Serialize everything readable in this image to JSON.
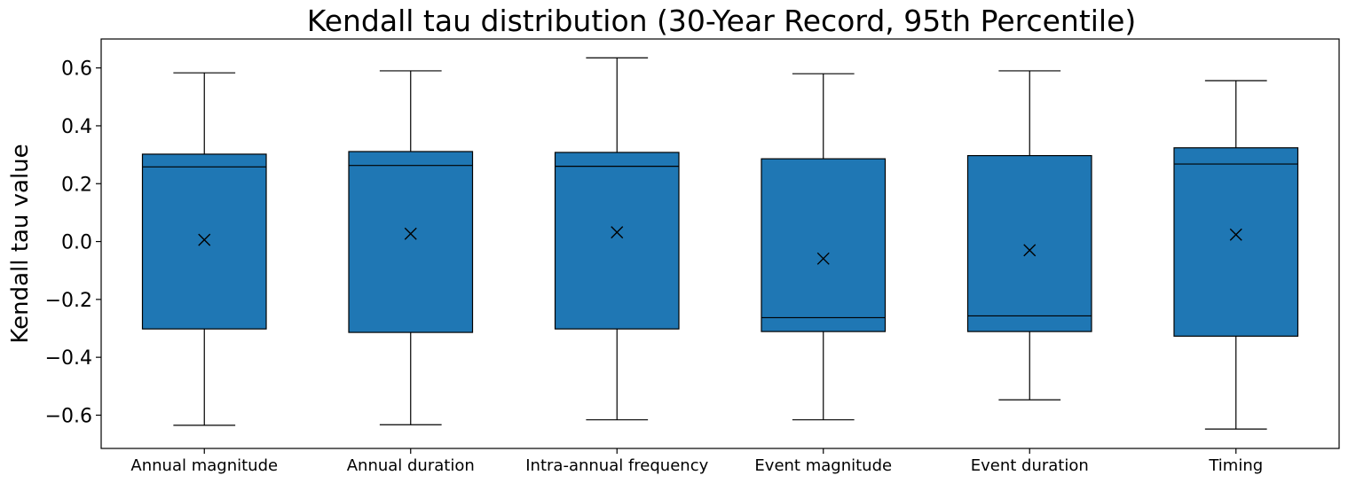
{
  "chart_data": {
    "type": "box",
    "title": "Kendall tau distribution (30-Year Record, 95th Percentile)",
    "xlabel": "",
    "ylabel": "Kendall tau value",
    "ylim": [
      -0.715,
      0.7
    ],
    "yticks": [
      0.6,
      0.4,
      0.2,
      0.0,
      -0.2,
      -0.4,
      -0.6
    ],
    "ytick_labels": [
      "0.6",
      "0.4",
      "0.2",
      "0.0",
      "−0.2",
      "−0.4",
      "−0.6"
    ],
    "grid": false,
    "box_color": "#1f77b4",
    "edge_color": "#000000",
    "mean_marker": "x",
    "categories": [
      "Annual magnitude",
      "Annual duration",
      "Intra-annual frequency",
      "Event magnitude",
      "Event duration",
      "Timing"
    ],
    "boxes": [
      {
        "whisker_low": -0.635,
        "q1": -0.302,
        "median": 0.258,
        "q3": 0.302,
        "whisker_high": 0.583,
        "mean": 0.006
      },
      {
        "whisker_low": -0.633,
        "q1": -0.314,
        "median": 0.263,
        "q3": 0.311,
        "whisker_high": 0.59,
        "mean": 0.027
      },
      {
        "whisker_low": -0.616,
        "q1": -0.302,
        "median": 0.26,
        "q3": 0.308,
        "whisker_high": 0.635,
        "mean": 0.032
      },
      {
        "whisker_low": -0.616,
        "q1": -0.311,
        "median": -0.263,
        "q3": 0.286,
        "whisker_high": 0.58,
        "mean": -0.059
      },
      {
        "whisker_low": -0.547,
        "q1": -0.311,
        "median": -0.257,
        "q3": 0.297,
        "whisker_high": 0.59,
        "mean": -0.03
      },
      {
        "whisker_low": -0.648,
        "q1": -0.327,
        "median": 0.268,
        "q3": 0.324,
        "whisker_high": 0.556,
        "mean": 0.024
      }
    ]
  }
}
